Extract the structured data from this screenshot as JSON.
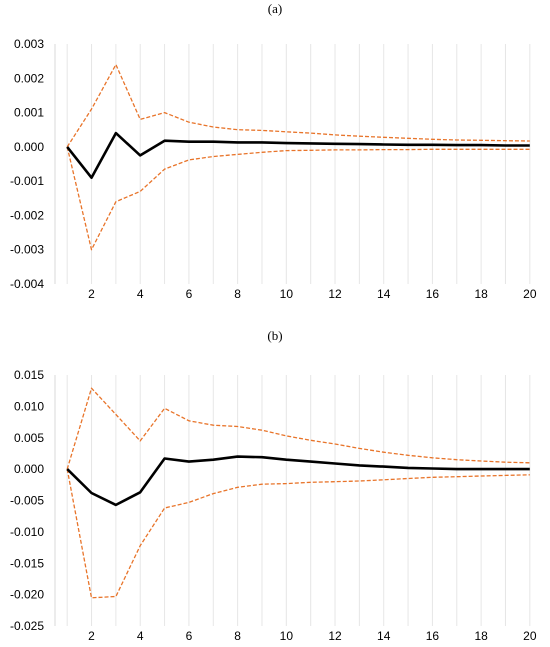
{
  "colors": {
    "irf": "#000000",
    "bands": "#e8742a",
    "grid": "#e6e6e6"
  },
  "chart_data": [
    {
      "type": "line",
      "panel_label": "(a)",
      "x": [
        1,
        2,
        3,
        4,
        5,
        6,
        7,
        8,
        9,
        10,
        11,
        12,
        13,
        14,
        15,
        16,
        17,
        18,
        19,
        20
      ],
      "series": [
        {
          "values": [
            0.0,
            -0.0009,
            0.0004,
            -0.00025,
            0.00018,
            0.00015,
            0.00015,
            0.00013,
            0.00013,
            0.00011,
            0.0001,
            9e-05,
            8e-05,
            7e-05,
            6e-05,
            6e-05,
            5e-05,
            5e-05,
            4e-05,
            4e-05
          ],
          "style": "solid"
        },
        {
          "values": [
            0.0,
            0.0011,
            0.0024,
            0.0008,
            0.001,
            0.00072,
            0.00058,
            0.0005,
            0.00048,
            0.00044,
            0.0004,
            0.00035,
            0.00031,
            0.00028,
            0.00025,
            0.00022,
            0.0002,
            0.00019,
            0.00018,
            0.00017
          ],
          "style": "dashed"
        },
        {
          "values": [
            0.0,
            -0.003,
            -0.0016,
            -0.0013,
            -0.00065,
            -0.00038,
            -0.00028,
            -0.00022,
            -0.00016,
            -0.00011,
            -0.0001,
            -9e-05,
            -9e-05,
            -8e-05,
            -8e-05,
            -7e-05,
            -7e-05,
            -7e-05,
            -7e-05,
            -7e-05
          ],
          "style": "dashed"
        }
      ],
      "yticks": [
        0.003,
        0.002,
        0.001,
        0.0,
        -0.001,
        -0.002,
        -0.003,
        -0.004
      ],
      "ytick_labels": [
        "0.003",
        "0.002",
        "0.001",
        "0.000",
        "-0.001",
        "-0.002",
        "-0.003",
        "-0.004"
      ],
      "xticks": [
        2,
        4,
        6,
        8,
        10,
        12,
        14,
        16,
        18,
        20
      ],
      "xtick_labels": [
        "2",
        "4",
        "6",
        "8",
        "10",
        "12",
        "14",
        "16",
        "18",
        "20"
      ],
      "ylim": [
        -0.004,
        0.003
      ],
      "xlim": [
        0.5,
        20.5
      ],
      "grid": "vertical"
    },
    {
      "type": "line",
      "panel_label": "(b)",
      "x": [
        1,
        2,
        3,
        4,
        5,
        6,
        7,
        8,
        9,
        10,
        11,
        12,
        13,
        14,
        15,
        16,
        17,
        18,
        19,
        20
      ],
      "series": [
        {
          "values": [
            0.0,
            -0.0038,
            -0.0057,
            -0.0037,
            0.0017,
            0.0012,
            0.0015,
            0.002,
            0.0019,
            0.0015,
            0.0012,
            0.0009,
            0.0006,
            0.0004,
            0.0002,
            0.0001,
            0.0,
            0.0,
            0.0,
            0.0
          ],
          "style": "solid"
        },
        {
          "values": [
            0.0,
            0.0129,
            0.0087,
            0.0045,
            0.0097,
            0.0077,
            0.007,
            0.0068,
            0.0062,
            0.0053,
            0.0046,
            0.004,
            0.0033,
            0.0027,
            0.0022,
            0.0018,
            0.0015,
            0.0013,
            0.0011,
            0.001
          ],
          "style": "dashed"
        },
        {
          "values": [
            0.0,
            -0.0205,
            -0.0203,
            -0.0122,
            -0.0062,
            -0.0053,
            -0.0039,
            -0.0029,
            -0.0024,
            -0.0023,
            -0.0021,
            -0.002,
            -0.0019,
            -0.0017,
            -0.0015,
            -0.0013,
            -0.0012,
            -0.0011,
            -0.001,
            -0.0009
          ],
          "style": "dashed"
        }
      ],
      "yticks": [
        0.015,
        0.01,
        0.005,
        0.0,
        -0.005,
        -0.01,
        -0.015,
        -0.02,
        -0.025
      ],
      "ytick_labels": [
        "0.015",
        "0.010",
        "0.005",
        "0.000",
        "-0.005",
        "-0.010",
        "-0.015",
        "-0.020",
        "-0.025"
      ],
      "xticks": [
        2,
        4,
        6,
        8,
        10,
        12,
        14,
        16,
        18,
        20
      ],
      "xtick_labels": [
        "2",
        "4",
        "6",
        "8",
        "10",
        "12",
        "14",
        "16",
        "18",
        "20"
      ],
      "ylim": [
        -0.025,
        0.015
      ],
      "xlim": [
        0.5,
        20.5
      ],
      "grid": "vertical"
    }
  ]
}
